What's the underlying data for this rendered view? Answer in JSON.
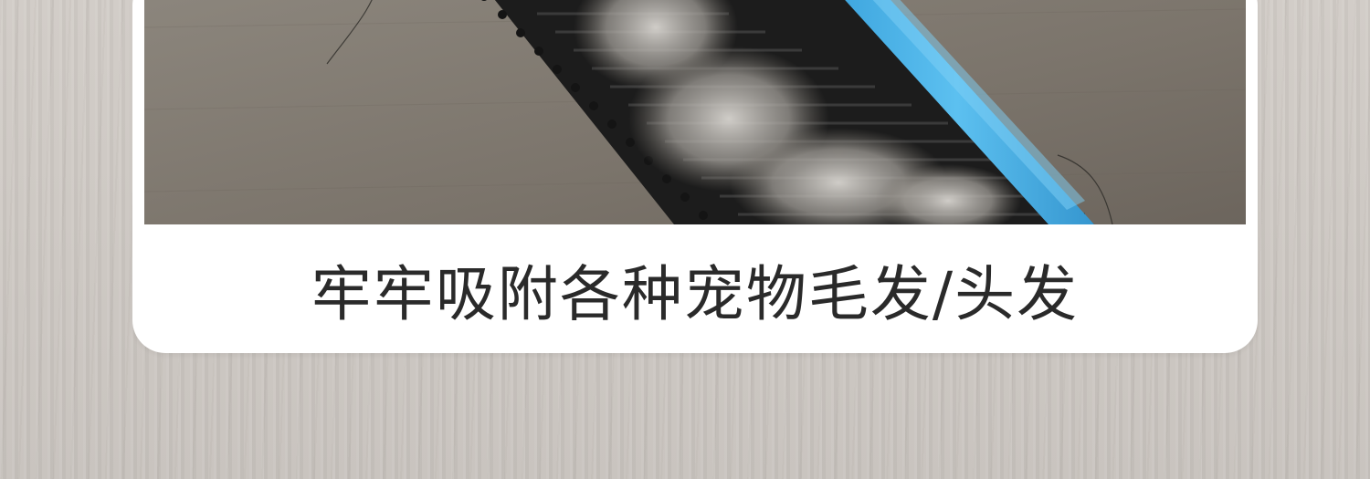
{
  "caption": {
    "text": "牢牢吸附各种宠物毛发/头发"
  },
  "photo": {
    "subject": "brush-with-pet-hair-image"
  },
  "colors": {
    "background": "#cdc8c3",
    "card": "#ffffff",
    "text": "#2a2a2a",
    "brush_handle": "#4fb3e8",
    "bristles": "#1b1b1b"
  }
}
